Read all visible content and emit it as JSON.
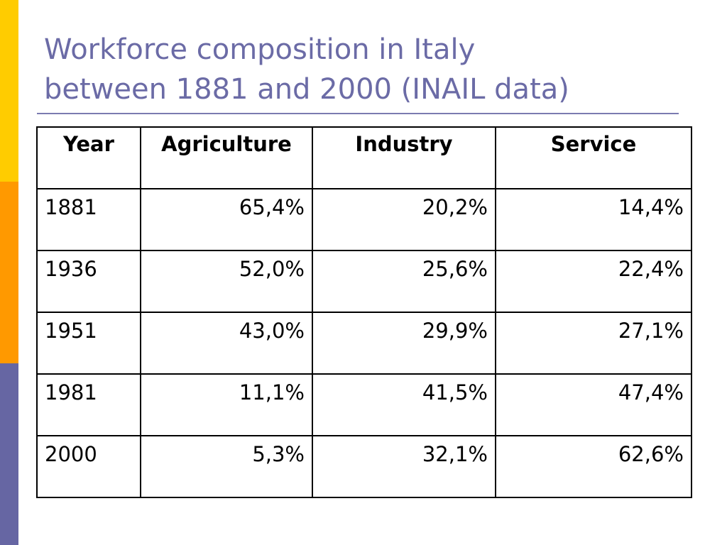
{
  "slide": {
    "title_lines": [
      "Workforce composition in Italy",
      "between 1881 and 2000 (INAIL data)"
    ]
  },
  "colors": {
    "bar_top": "#ffcc00",
    "bar_middle": "#ff9900",
    "bar_bottom": "#6666a3",
    "title": "#6b6ba6"
  },
  "table": {
    "headers": [
      "Year",
      "Agriculture",
      "Industry",
      "Service"
    ],
    "rows": [
      [
        "1881",
        "65,4%",
        "20,2%",
        "14,4%"
      ],
      [
        "1936",
        "52,0%",
        "25,6%",
        "22,4%"
      ],
      [
        "1951",
        "43,0%",
        "29,9%",
        "27,1%"
      ],
      [
        "1981",
        "11,1%",
        "41,5%",
        "47,4%"
      ],
      [
        "2000",
        "5,3%",
        "32,1%",
        "62,6%"
      ]
    ]
  }
}
